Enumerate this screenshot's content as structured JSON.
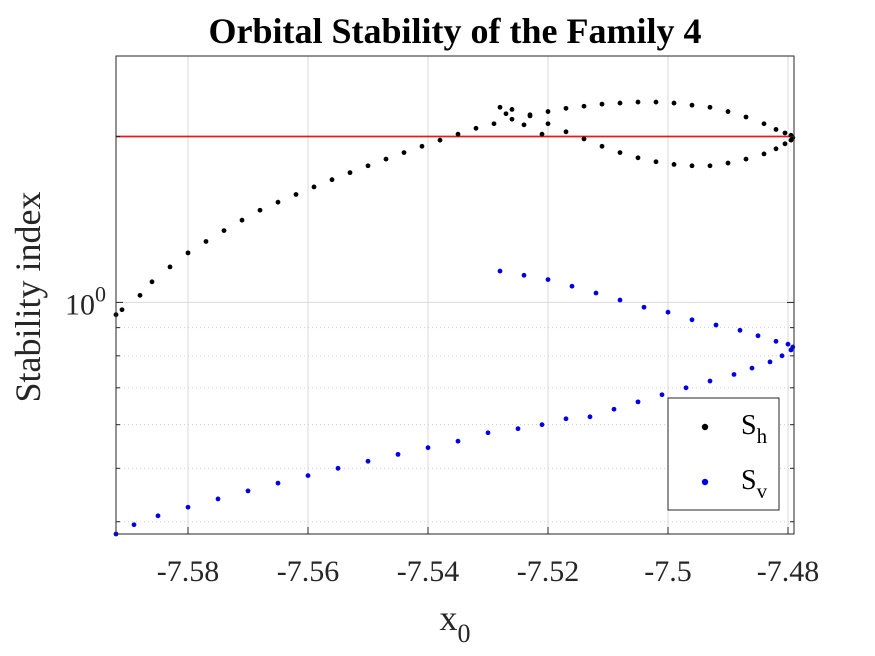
{
  "chart_data": {
    "type": "scatter",
    "title": "Orbital Stability of the Family 4",
    "xlabel": "x",
    "xlabel_sub": "0",
    "ylabel": "Stability index",
    "yscale": "log",
    "xlim": [
      -7.592,
      -7.479
    ],
    "ylim": [
      0.38,
      2.8
    ],
    "x_ticks": [
      -7.58,
      -7.56,
      -7.54,
      -7.52,
      -7.5,
      -7.48
    ],
    "x_tick_labels": [
      "-7.58",
      "-7.56",
      "-7.54",
      "-7.52",
      "-7.5",
      "-7.48"
    ],
    "y_major_tick": {
      "value": 1,
      "base": "10",
      "exponent": "0"
    },
    "y_minor_ticks": [
      0.4,
      0.5,
      0.6,
      0.7,
      0.8,
      0.9,
      2
    ],
    "grid": true,
    "legend_position": "bottom-right",
    "reference_line": {
      "y": 2,
      "color": "#e8191c"
    },
    "series": [
      {
        "name": "S",
        "name_sub": "h",
        "color": "#000000",
        "x": [
          -7.592,
          -7.591,
          -7.588,
          -7.586,
          -7.583,
          -7.58,
          -7.577,
          -7.574,
          -7.571,
          -7.568,
          -7.565,
          -7.562,
          -7.559,
          -7.556,
          -7.553,
          -7.55,
          -7.547,
          -7.544,
          -7.541,
          -7.538,
          -7.535,
          -7.532,
          -7.529,
          -7.526,
          -7.523,
          -7.52,
          -7.517,
          -7.514,
          -7.511,
          -7.508,
          -7.505,
          -7.502,
          -7.499,
          -7.496,
          -7.493,
          -7.49,
          -7.487,
          -7.484,
          -7.482,
          -7.4805,
          -7.4795,
          -7.4792,
          -7.4795,
          -7.4805,
          -7.482,
          -7.484,
          -7.487,
          -7.49,
          -7.493,
          -7.496,
          -7.499,
          -7.502,
          -7.505,
          -7.508,
          -7.511,
          -7.514,
          -7.517,
          -7.52,
          -7.523,
          -7.526,
          -7.528,
          -7.527,
          -7.524,
          -7.521
        ],
        "y": [
          0.95,
          0.97,
          1.03,
          1.09,
          1.16,
          1.23,
          1.29,
          1.35,
          1.41,
          1.47,
          1.52,
          1.57,
          1.62,
          1.67,
          1.72,
          1.77,
          1.82,
          1.87,
          1.92,
          1.97,
          2.02,
          2.07,
          2.11,
          2.15,
          2.19,
          2.22,
          2.25,
          2.27,
          2.29,
          2.3,
          2.31,
          2.31,
          2.3,
          2.28,
          2.26,
          2.22,
          2.17,
          2.11,
          2.06,
          2.03,
          2.01,
          1.99,
          1.97,
          1.94,
          1.9,
          1.86,
          1.82,
          1.79,
          1.77,
          1.77,
          1.78,
          1.8,
          1.83,
          1.87,
          1.92,
          1.98,
          2.04,
          2.11,
          2.18,
          2.24,
          2.26,
          2.2,
          2.1,
          2.02
        ]
      },
      {
        "name": "S",
        "name_sub": "v",
        "color": "#0000e6",
        "x": [
          -7.528,
          -7.524,
          -7.52,
          -7.516,
          -7.512,
          -7.508,
          -7.504,
          -7.5,
          -7.496,
          -7.492,
          -7.488,
          -7.485,
          -7.482,
          -7.48,
          -7.4792,
          -7.4795,
          -7.481,
          -7.483,
          -7.486,
          -7.489,
          -7.493,
          -7.497,
          -7.501,
          -7.505,
          -7.509,
          -7.513,
          -7.517,
          -7.521,
          -7.525,
          -7.53,
          -7.535,
          -7.54,
          -7.545,
          -7.55,
          -7.555,
          -7.56,
          -7.565,
          -7.57,
          -7.575,
          -7.58,
          -7.585,
          -7.589,
          -7.592
        ],
        "y": [
          1.14,
          1.12,
          1.1,
          1.07,
          1.04,
          1.01,
          0.98,
          0.96,
          0.93,
          0.91,
          0.89,
          0.87,
          0.85,
          0.84,
          0.83,
          0.82,
          0.8,
          0.78,
          0.76,
          0.74,
          0.72,
          0.7,
          0.68,
          0.66,
          0.64,
          0.62,
          0.615,
          0.6,
          0.59,
          0.58,
          0.56,
          0.545,
          0.53,
          0.515,
          0.5,
          0.485,
          0.47,
          0.455,
          0.44,
          0.425,
          0.41,
          0.395,
          0.38
        ]
      }
    ]
  }
}
